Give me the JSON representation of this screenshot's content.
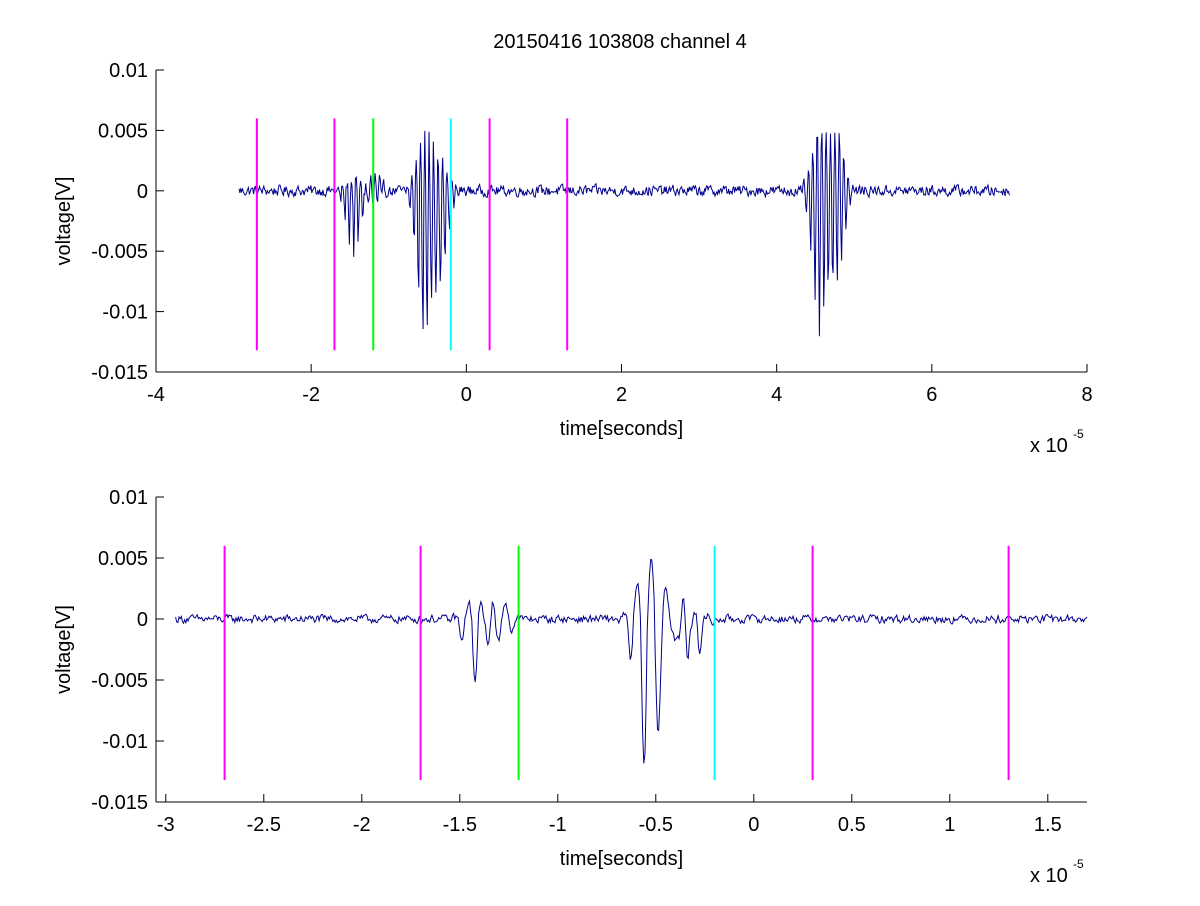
{
  "title": "20150416 103808 channel 4",
  "colors": {
    "signal": "#00008B",
    "marker_magenta": "#FF00FF",
    "marker_green": "#00FF00",
    "marker_cyan": "#00FFFF",
    "axis": "#000000",
    "background": "#FFFFFF"
  },
  "chart_data": [
    {
      "type": "line",
      "title": "20150416 103808 channel 4",
      "xlabel": "time[seconds]",
      "ylabel": "voltage[V]",
      "x_exponent_label": "x 10",
      "x_exponent": "-5",
      "xlim": [
        -4,
        8
      ],
      "ylim": [
        -0.015,
        0.01
      ],
      "x_scale_note": "x values are in units of 1e-5 seconds",
      "xticks": [
        -4,
        -2,
        0,
        2,
        4,
        6,
        8
      ],
      "xtick_labels": [
        "-4",
        "-2",
        "0",
        "2",
        "4",
        "6",
        "8"
      ],
      "yticks": [
        0.01,
        0.005,
        0,
        -0.005,
        -0.01,
        -0.015
      ],
      "ytick_labels": [
        "0.01",
        "0.005",
        "0",
        "-0.005",
        "-0.01",
        "-0.015"
      ],
      "grid": false,
      "series": [
        {
          "color": "#00008B",
          "x_range": [
            -2.93,
            7.0
          ],
          "noise_level": 0.0004,
          "bursts": [
            {
              "x": -1.45,
              "min": -0.0055,
              "max": 0.001
            },
            {
              "x": -1.2,
              "min": -0.0015,
              "max": 0.0015
            },
            {
              "x": -0.55,
              "min": -0.012,
              "max": 0.0048
            },
            {
              "x": -0.45,
              "min": -0.006,
              "max": 0.003
            },
            {
              "x": -0.32,
              "min": -0.007,
              "max": 0.0025
            },
            {
              "x": 4.55,
              "min": -0.012,
              "max": 0.0053
            },
            {
              "x": 4.78,
              "min": -0.0075,
              "max": 0.0055
            }
          ]
        }
      ],
      "markers": [
        {
          "x": -2.7,
          "color": "#FF00FF",
          "y_top": 0.006,
          "y_bottom": -0.0132
        },
        {
          "x": -1.7,
          "color": "#FF00FF",
          "y_top": 0.006,
          "y_bottom": -0.0132
        },
        {
          "x": -1.2,
          "color": "#00FF00",
          "y_top": 0.006,
          "y_bottom": -0.0132
        },
        {
          "x": -0.2,
          "color": "#00FFFF",
          "y_top": 0.006,
          "y_bottom": -0.0132
        },
        {
          "x": 0.3,
          "color": "#FF00FF",
          "y_top": 0.006,
          "y_bottom": -0.0132
        },
        {
          "x": 1.3,
          "color": "#FF00FF",
          "y_top": 0.006,
          "y_bottom": -0.0132
        }
      ]
    },
    {
      "type": "line",
      "title": "",
      "xlabel": "time[seconds]",
      "ylabel": "voltage[V]",
      "x_exponent_label": "x 10",
      "x_exponent": "-5",
      "xlim": [
        -3.05,
        1.7
      ],
      "ylim": [
        -0.015,
        0.01
      ],
      "x_scale_note": "x values are in units of 1e-5 seconds",
      "xticks": [
        -3,
        -2.5,
        -2,
        -1.5,
        -1,
        -0.5,
        0,
        0.5,
        1,
        1.5
      ],
      "xtick_labels": [
        "-3",
        "-2.5",
        "-2",
        "-1.5",
        "-1",
        "-0.5",
        "0",
        "0.5",
        "1",
        "1.5"
      ],
      "yticks": [
        0.01,
        0.005,
        0,
        -0.005,
        -0.01,
        -0.015
      ],
      "ytick_labels": [
        "0.01",
        "0.005",
        "0",
        "-0.005",
        "-0.01",
        "-0.015"
      ],
      "grid": false,
      "series": [
        {
          "color": "#00008B",
          "x_range": [
            -2.95,
            1.7
          ],
          "noise_level": 0.0003,
          "bursts": [
            {
              "x": -1.42,
              "min": -0.0055,
              "max": 0.0018
            },
            {
              "x": -1.3,
              "min": -0.002,
              "max": 0.0018
            },
            {
              "x": -0.55,
              "min": -0.012,
              "max": 0.0045
            },
            {
              "x": -0.47,
              "min": -0.006,
              "max": 0.0035
            },
            {
              "x": -0.37,
              "min": -0.0035,
              "max": 0.0058
            },
            {
              "x": -0.33,
              "min": -0.007,
              "max": 0.002
            }
          ]
        }
      ],
      "markers": [
        {
          "x": -2.7,
          "color": "#FF00FF",
          "y_top": 0.006,
          "y_bottom": -0.0132
        },
        {
          "x": -1.7,
          "color": "#FF00FF",
          "y_top": 0.006,
          "y_bottom": -0.0132
        },
        {
          "x": -1.2,
          "color": "#00FF00",
          "y_top": 0.006,
          "y_bottom": -0.0132
        },
        {
          "x": -0.2,
          "color": "#00FFFF",
          "y_top": 0.006,
          "y_bottom": -0.0132
        },
        {
          "x": 0.3,
          "color": "#FF00FF",
          "y_top": 0.006,
          "y_bottom": -0.0132
        },
        {
          "x": 1.3,
          "color": "#FF00FF",
          "y_top": 0.006,
          "y_bottom": -0.0132
        }
      ]
    }
  ]
}
